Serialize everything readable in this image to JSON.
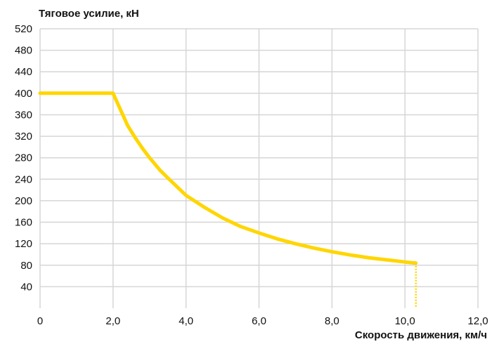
{
  "chart_data": {
    "type": "line",
    "title": "",
    "ylabel": "Тяговое усилие, кН",
    "xlabel": "Скорость движения, км/ч",
    "xlim": [
      0,
      12
    ],
    "ylim": [
      0,
      520
    ],
    "grid": true,
    "x_ticks": [
      0,
      2,
      4,
      6,
      8,
      10,
      12
    ],
    "x_tick_labels": [
      "0",
      "2,0",
      "4,0",
      "6,0",
      "8,0",
      "10,0",
      "12,0"
    ],
    "y_ticks": [
      40,
      80,
      120,
      160,
      200,
      240,
      280,
      320,
      360,
      400,
      440,
      480,
      520
    ],
    "y_tick_labels": [
      "40",
      "80",
      "120",
      "160",
      "200",
      "240",
      "280",
      "320",
      "360",
      "400",
      "440",
      "480",
      "520"
    ],
    "series": [
      {
        "color": "#FFD600",
        "x": [
          0,
          2.0,
          2.2,
          2.4,
          2.6,
          2.8,
          3.0,
          3.3,
          3.6,
          4.0,
          4.5,
          5.0,
          5.5,
          6.0,
          6.5,
          7.0,
          7.5,
          8.0,
          8.5,
          9.0,
          9.5,
          10.0,
          10.3
        ],
        "y": [
          400,
          400,
          370,
          340,
          318,
          298,
          280,
          256,
          236,
          210,
          188,
          168,
          152,
          140,
          129,
          120,
          112,
          105,
          99,
          94,
          90,
          86,
          84
        ]
      }
    ],
    "cutoff": {
      "x": 10.3,
      "y": 84,
      "color": "#FFD600",
      "style": "dotted"
    }
  }
}
